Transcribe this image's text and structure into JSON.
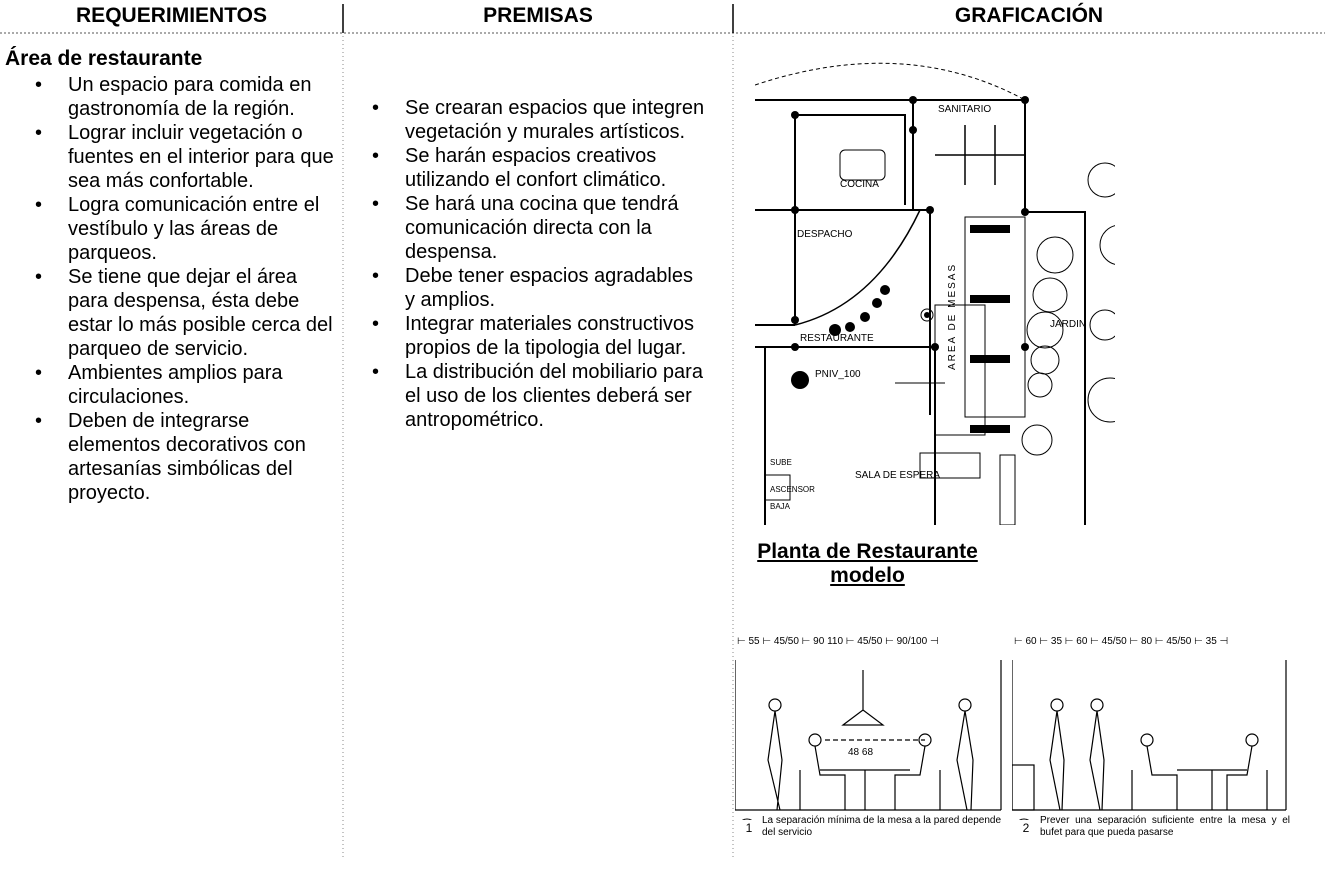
{
  "headers": [
    "REQUERIMIENTOS",
    "PREMISAS",
    "GRAFICACIÓN"
  ],
  "requirements": {
    "title": "Área de restaurante",
    "items": [
      "Un espacio para comida en gastronomía de la región.",
      "Lograr incluir vegetación o fuentes en el interior para que sea más confortable.",
      "Logra comunicación entre el vestíbulo y las áreas de parqueos.",
      "Se tiene que dejar el área para despensa, ésta debe estar lo más posible cerca del parqueo de servicio.",
      "Ambientes amplios para circulaciones.",
      "Deben de integrarse elementos decorativos con artesanías simbólicas del proyecto."
    ]
  },
  "premises": {
    "items": [
      "Se crearan espacios que integren vegetación y murales artísticos.",
      "Se harán espacios creativos utilizando el confort climático.",
      "Se hará una cocina que tendrá comunicación directa con la despensa.",
      "Debe tener espacios agradables y amplios.",
      "Integrar materiales constructivos propios de la tipologia del lugar.",
      "La distribución del mobiliario para el uso de los clientes deberá ser antropométrico."
    ]
  },
  "graphics": {
    "plan": {
      "sanitario": "SANITARIO",
      "cocina": "COCINA",
      "despacho": "DESPACHO",
      "restaurante": "RESTAURANTE",
      "mesas": "AREA DE MESAS",
      "jardin": "JARDIN",
      "nivel": "PNIV_100",
      "espera": "SALA DE ESPERA",
      "sube": "SUBE",
      "ascensor": "ASCENSOR",
      "baja": "BAJA"
    },
    "plan_caption": "Planta de Restaurante modelo",
    "figures": [
      {
        "number": "1",
        "dimensions": "⊢ 55 ⊢ 45/50 ⊢ 90   110 ⊢ 45/50 ⊢ 90/100 ⊣",
        "heights": "48   68",
        "caption": "La separación mínima de la mesa a la pared depende del servicio"
      },
      {
        "number": "2",
        "dimensions": "⊢ 60 ⊢ 35 ⊢ 60 ⊢ 45/50 ⊢ 80 ⊢ 45/50 ⊢ 35 ⊣",
        "caption": "Prever una separación suficiente entre la mesa y el bufet para que pueda pasarse"
      }
    ]
  }
}
